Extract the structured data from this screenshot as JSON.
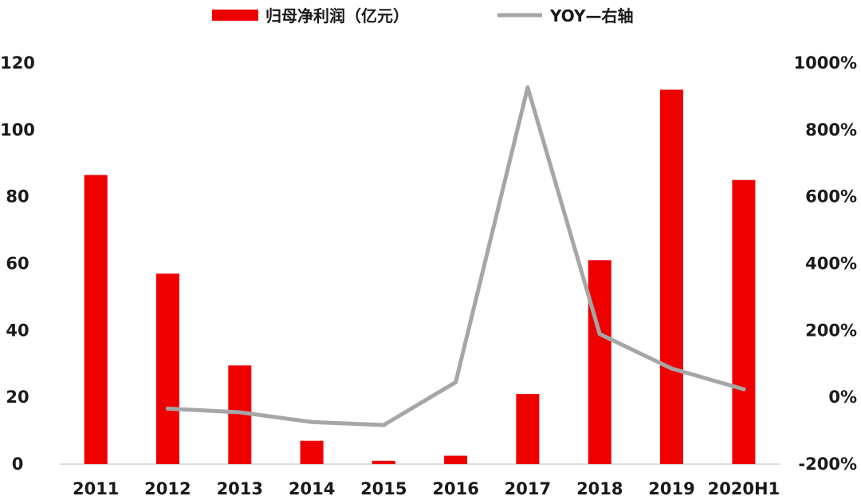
{
  "chart_data": {
    "type": "bar",
    "categories": [
      "2011",
      "2012",
      "2013",
      "2014",
      "2015",
      "2016",
      "2017",
      "2018",
      "2019",
      "2020H1"
    ],
    "series": [
      {
        "name": "归母净利润（亿元）",
        "type": "bar",
        "axis": "left",
        "color": "#ee0000",
        "values": [
          86.5,
          57,
          29.5,
          7,
          1,
          2.5,
          21,
          61,
          112,
          85
        ]
      },
      {
        "name": "YOY—右轴",
        "type": "line",
        "axis": "right",
        "color": "#a6a6a6",
        "values": [
          null,
          -34,
          -45,
          -74,
          -83,
          45,
          927,
          189,
          86,
          24
        ]
      }
    ],
    "y_left": {
      "min": 0,
      "max": 120,
      "ticks": [
        "0",
        "20",
        "40",
        "60",
        "80",
        "100",
        "120"
      ]
    },
    "y_right": {
      "min": -200,
      "max": 1000,
      "ticks": [
        "-200%",
        "0%",
        "200%",
        "400%",
        "600%",
        "800%",
        "1000%"
      ]
    },
    "legend": {
      "position": "top-center"
    },
    "grid": false,
    "title": "",
    "xlabel": "",
    "ylabel": ""
  }
}
